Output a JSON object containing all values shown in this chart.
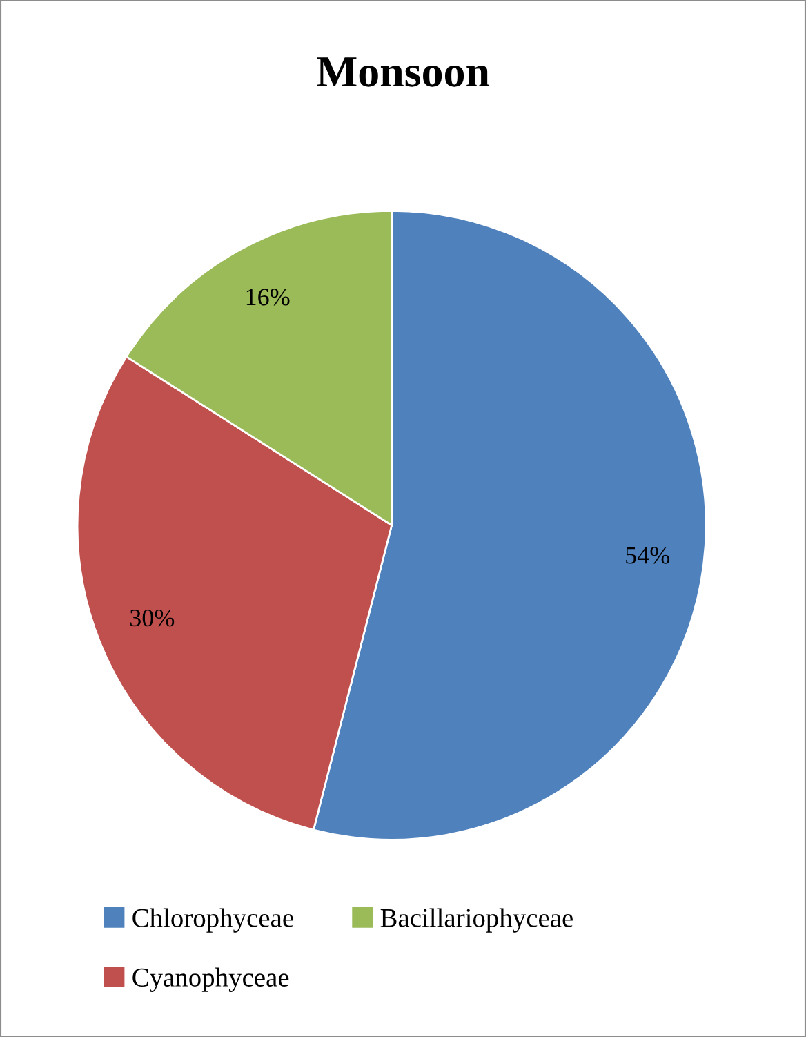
{
  "chart_data": {
    "type": "pie",
    "title": "Monsoon",
    "categories": [
      "Chlorophyceae",
      "Cyanophyceae",
      "Bacillariophyceae"
    ],
    "values": [
      54,
      30,
      16
    ],
    "colors": [
      "#4f81bd",
      "#c0504d",
      "#9bbb59"
    ],
    "value_labels": [
      "54%",
      "30%",
      "16%"
    ],
    "legend": "bottom"
  }
}
